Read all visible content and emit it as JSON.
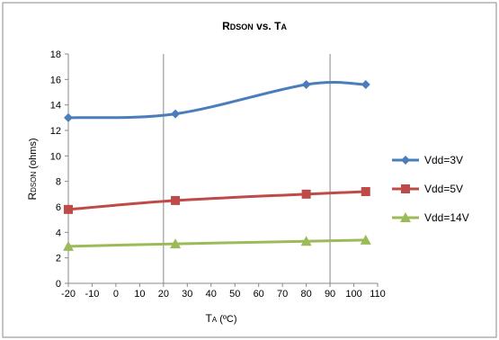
{
  "chart_data": {
    "type": "line",
    "title_main": "R",
    "title_sub": "DSON",
    "title_vs": " vs. T",
    "title_sub2": "A",
    "xlabel_main": "T",
    "xlabel_sub": "A",
    "xlabel_unit": " (ºC)",
    "ylabel_main": "R",
    "ylabel_sub": "DSON",
    "ylabel_unit": " (ohms)",
    "xlim": [
      -20,
      110
    ],
    "xticks": [
      -20,
      -10,
      0,
      10,
      20,
      30,
      40,
      50,
      60,
      70,
      80,
      90,
      100,
      110
    ],
    "ylim": [
      0,
      18
    ],
    "yticks": [
      0,
      2,
      4,
      6,
      8,
      10,
      12,
      14,
      16,
      18
    ],
    "legend_position": "right",
    "grid": "major vertical lines at 20 and 90",
    "series": [
      {
        "name": "Vdd=3V",
        "marker": "diamond",
        "color": "#4a7ebb",
        "x": [
          -20,
          25,
          80,
          105
        ],
        "y": [
          13.0,
          13.3,
          15.6,
          15.6
        ]
      },
      {
        "name": "Vdd=5V",
        "marker": "square",
        "color": "#be4b48",
        "x": [
          -20,
          25,
          80,
          105
        ],
        "y": [
          5.8,
          6.5,
          7.0,
          7.2
        ]
      },
      {
        "name": "Vdd=14V",
        "marker": "triangle",
        "color": "#9bbb59",
        "x": [
          -20,
          25,
          80,
          105
        ],
        "y": [
          2.9,
          3.1,
          3.3,
          3.4
        ]
      }
    ]
  }
}
